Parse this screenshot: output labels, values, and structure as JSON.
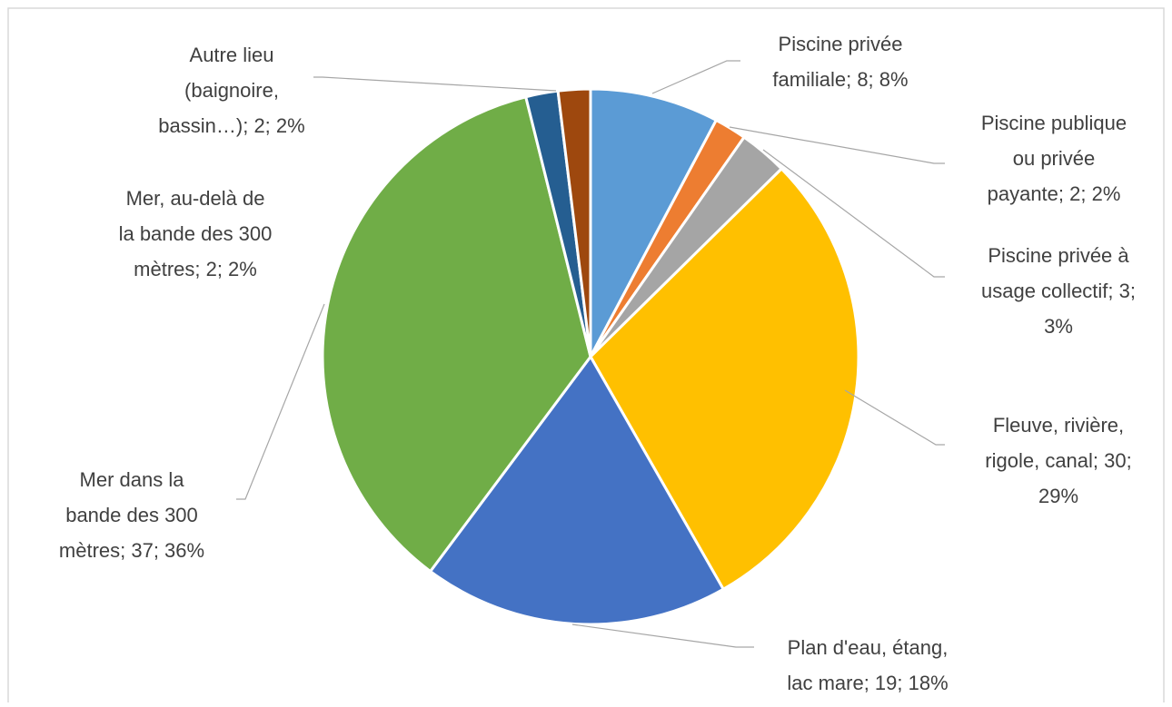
{
  "chart_data": {
    "type": "pie",
    "values": [
      8,
      2,
      3,
      30,
      19,
      37,
      2,
      2
    ],
    "value_labels": [
      [
        "Piscine privée",
        "familiale; 8; 8%"
      ],
      [
        "Piscine publique",
        "ou privée",
        "payante; 2; 2%"
      ],
      [
        "Piscine privée à",
        "usage collectif; 3;",
        "3%"
      ],
      [
        "Fleuve, rivière,",
        "rigole, canal; 30;",
        "29%"
      ],
      [
        "Plan d'eau, étang,",
        "lac mare; 19; 18%"
      ],
      [
        "Mer dans la",
        "bande des 300",
        "mètres; 37; 36%"
      ],
      [
        "Mer, au-delà de",
        "la bande des 300",
        "mètres; 2; 2%"
      ],
      [
        "Autre lieu",
        "(baignoire,",
        "bassin…); 2; 2%"
      ]
    ],
    "colors": [
      "#5b9bd5",
      "#ed7d31",
      "#a5a5a5",
      "#ffc000",
      "#4472c4",
      "#70ad47",
      "#255e91",
      "#9e480e"
    ]
  }
}
